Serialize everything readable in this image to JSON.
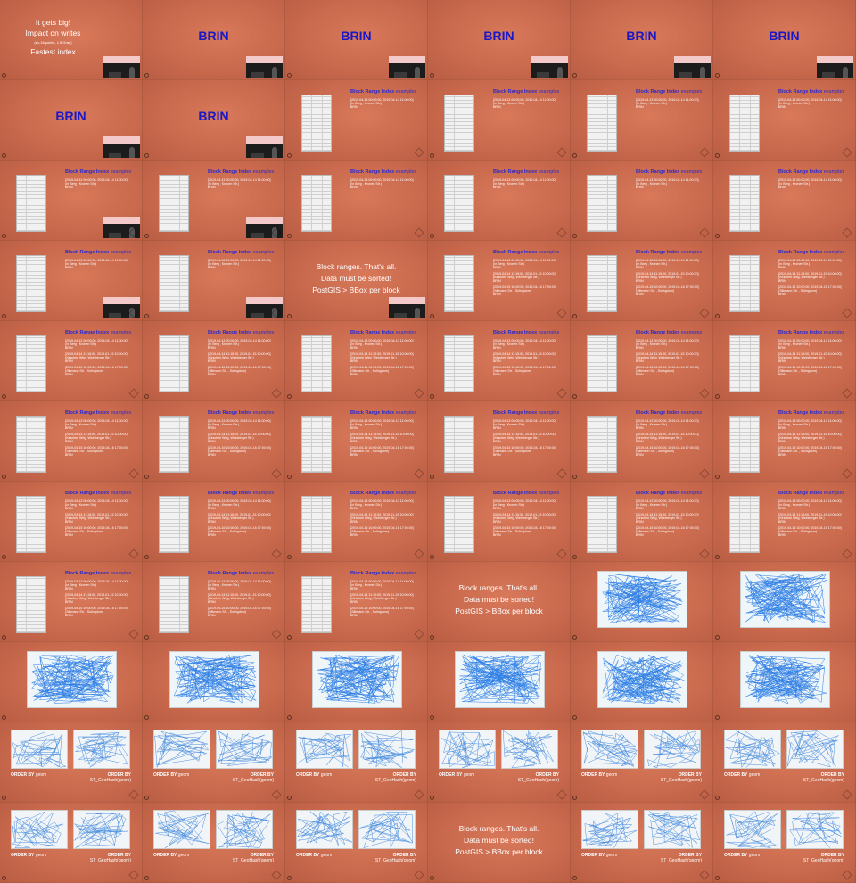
{
  "grid": {
    "columns": 6,
    "rows": 11
  },
  "colors": {
    "background": "#c9694d",
    "brin_title": "#1818c8",
    "text": "#ffffff",
    "scribble": "#2f7fe6"
  },
  "texts": {
    "first": {
      "line1": "It gets big!",
      "line2": "Impact on writes",
      "small": "(ex-16 points, 1.5 Gran)",
      "line3": "Fastest index"
    },
    "brin": "BRIN",
    "block_range": {
      "title": "Block Range Index",
      "title_suffix": " examples",
      "lines": [
        "[2019-04-13 00:00:00, 2019-04-14 11:00:00]",
        "(In Berg , Kronen Str.)",
        "BRIN",
        "[2019-04-14 11:15:00, 2019-01-15 10:00:00]",
        "(Kirschen Weg, Weinberger Str.)",
        "BRIN",
        "[2019-04-15 10:00:00, 2019-04-16 17:00:00]",
        "(Sittmann Str. , Solingdorn)",
        "BRIN"
      ]
    },
    "summary": [
      "Block ranges. That's all.",
      "Data must be sorted!",
      "PostGIS > BBox per block"
    ],
    "order_left_kw": "ORDER BY",
    "order_left_val": " geom",
    "order_right_kw": "ORDER BY",
    "order_right_val": "ST_GeoHash(geom)"
  },
  "slides": [
    "first",
    "brin",
    "brin",
    "brin",
    "brin",
    "brin",
    "brin",
    "brin",
    "br1",
    "br1",
    "br1",
    "br1",
    "br1cam",
    "br1cam",
    "br1",
    "br1",
    "br1",
    "br1",
    "br1cam",
    "br1cam",
    "summary",
    "br3",
    "br3",
    "br3",
    "br3",
    "br3",
    "br3",
    "br3",
    "br3",
    "br3",
    "br3",
    "br3",
    "br3",
    "br3",
    "br3",
    "br3",
    "br3",
    "br3",
    "br3",
    "br3",
    "br3",
    "br3",
    "br3",
    "br3",
    "br3",
    "summary",
    "scatter",
    "scatter",
    "scatter",
    "scatter",
    "scatter",
    "scatter",
    "scatter",
    "scatter",
    "order",
    "order",
    "order",
    "order",
    "order",
    "order",
    "order",
    "order",
    "order",
    "summary2",
    "order",
    "order"
  ]
}
